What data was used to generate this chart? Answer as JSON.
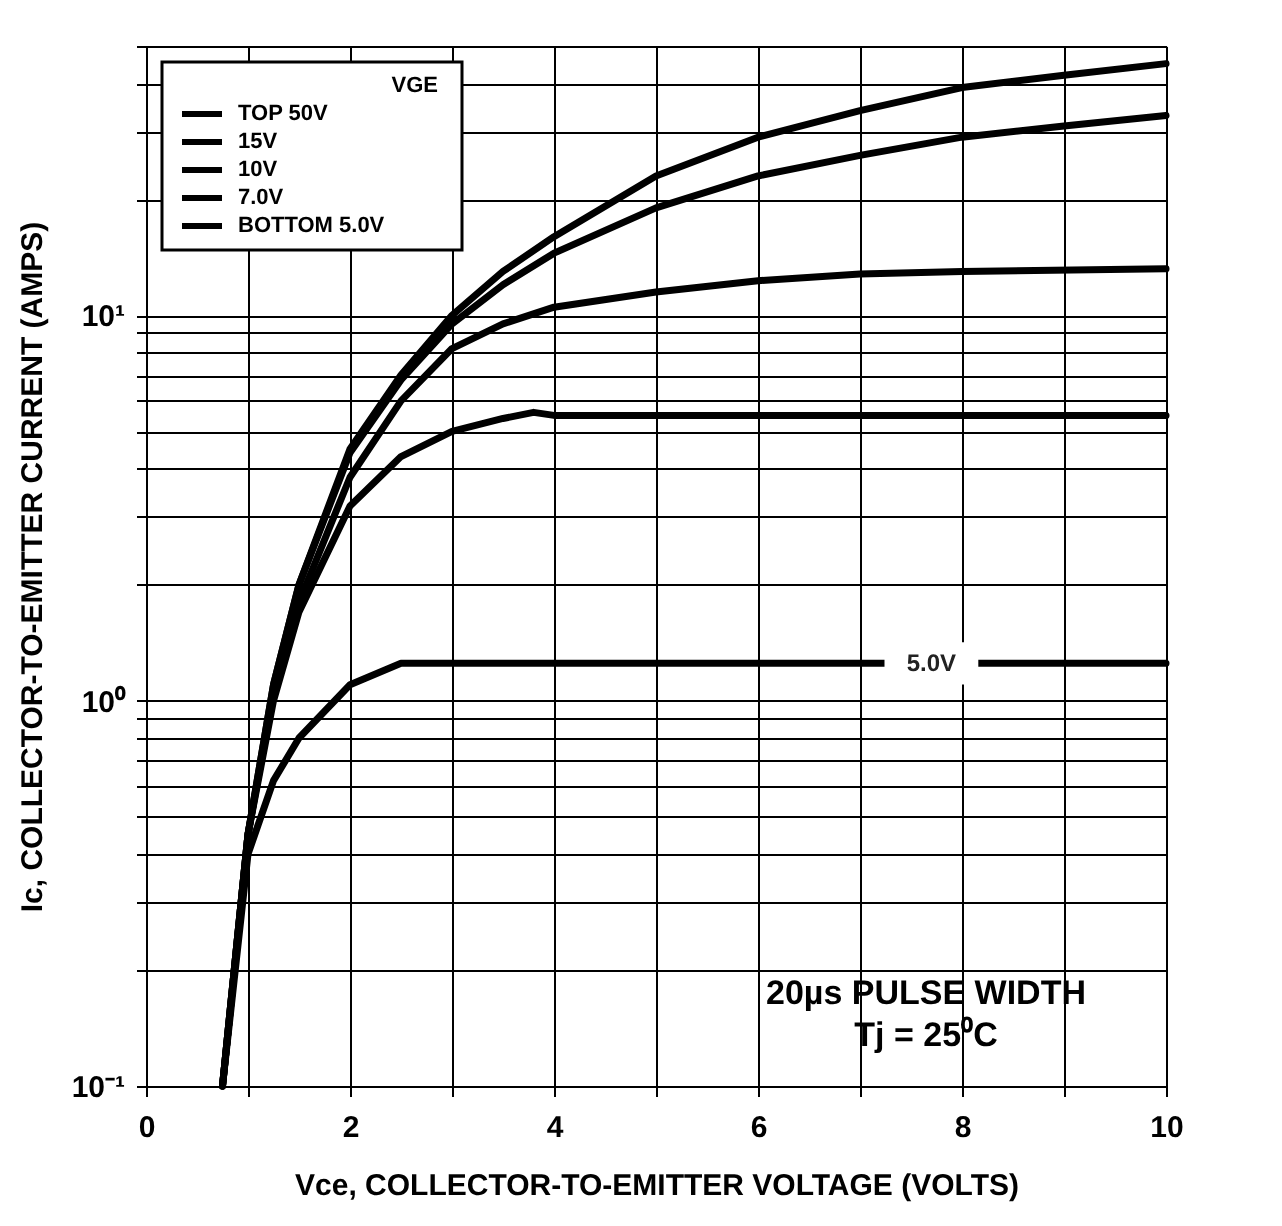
{
  "chart_data": {
    "type": "line",
    "xlabel": "Vce, COLLECTOR-TO-EMITTER VOLTAGE (VOLTS)",
    "ylabel": "Ic, COLLECTOR-TO-EMITTER CURRENT (AMPS)",
    "legend_title": "VGE",
    "legend": "top left",
    "log": "y",
    "grid": true,
    "xlim": [
      0,
      10
    ],
    "ylim": [
      0.1,
      50
    ],
    "xticks": [
      0,
      {
        "value": 1,
        "label": null
      },
      2,
      {
        "value": 3,
        "label": null
      },
      4,
      {
        "value": 5,
        "label": null
      },
      6,
      {
        "value": 7,
        "label": null
      },
      8,
      {
        "value": 9,
        "label": null
      },
      10
    ],
    "yticks": [
      {
        "value": 0.1,
        "label": "10⁻¹"
      },
      {
        "value": 0.2,
        "label": null
      },
      {
        "value": 0.3,
        "label": null
      },
      {
        "value": 0.4,
        "label": null
      },
      {
        "value": 0.5,
        "label": null
      },
      {
        "value": 0.6,
        "label": null
      },
      {
        "value": 0.7,
        "label": null
      },
      {
        "value": 0.8,
        "label": null
      },
      {
        "value": 0.9,
        "label": null
      },
      {
        "value": 1,
        "label": "10⁰"
      },
      {
        "value": 2,
        "label": null
      },
      {
        "value": 3,
        "label": null
      },
      {
        "value": 4,
        "label": null
      },
      {
        "value": 5,
        "label": null
      },
      {
        "value": 6,
        "label": null
      },
      {
        "value": 7,
        "label": null
      },
      {
        "value": 8,
        "label": null
      },
      {
        "value": 9,
        "label": null
      },
      {
        "value": 10,
        "label": "10¹"
      },
      {
        "value": 20,
        "label": null
      },
      {
        "value": 30,
        "label": null
      },
      {
        "value": 40,
        "label": null
      },
      {
        "value": 50,
        "label": null
      }
    ],
    "line_style": "solid",
    "marker": "none",
    "series": [
      {
        "name": "TOP 50V",
        "color": "#000000",
        "x": [
          0.75,
          1,
          1.25,
          1.5,
          2,
          2.5,
          3,
          3.5,
          4,
          5,
          6,
          7,
          8,
          9,
          10
        ],
        "values": [
          0.1,
          0.45,
          1.1,
          2.0,
          4.5,
          7,
          10,
          13,
          16,
          23,
          29,
          34,
          39,
          42,
          45
        ]
      },
      {
        "name": "15V",
        "color": "#000000",
        "x": [
          0.75,
          1,
          1.25,
          1.5,
          2,
          2.5,
          3,
          3.5,
          4,
          5,
          6,
          7,
          8,
          9,
          10
        ],
        "values": [
          0.1,
          0.45,
          1.1,
          2.0,
          4.4,
          6.8,
          9.5,
          12,
          14.5,
          19,
          23,
          26,
          29,
          31,
          33
        ]
      },
      {
        "name": "10V",
        "color": "#000000",
        "x": [
          0.75,
          1,
          1.25,
          1.5,
          2,
          2.5,
          3,
          3.5,
          4,
          5,
          6,
          7,
          8,
          10
        ],
        "values": [
          0.1,
          0.45,
          1.05,
          1.8,
          3.8,
          6,
          8.2,
          9.5,
          10.5,
          11.5,
          12.3,
          12.8,
          13,
          13.2
        ]
      },
      {
        "name": "7.0V",
        "color": "#000000",
        "x": [
          0.75,
          1,
          1.25,
          1.5,
          2,
          2.5,
          3,
          3.5,
          3.8,
          4,
          10
        ],
        "values": [
          0.1,
          0.45,
          1.0,
          1.7,
          3.2,
          4.3,
          5.0,
          5.4,
          5.6,
          5.5,
          5.5
        ]
      },
      {
        "name": "BOTTOM 5.0V",
        "color": "#000000",
        "x": [
          0.75,
          1,
          1.25,
          1.5,
          2,
          2.5,
          10
        ],
        "values": [
          0.1,
          0.4,
          0.62,
          0.8,
          1.1,
          1.25,
          1.25
        ]
      }
    ],
    "annotations": [
      {
        "text": "5.0V",
        "x": 7.7,
        "y": 1.25
      },
      "20µs PULSE WIDTH\nTj = 25⁰C"
    ]
  }
}
